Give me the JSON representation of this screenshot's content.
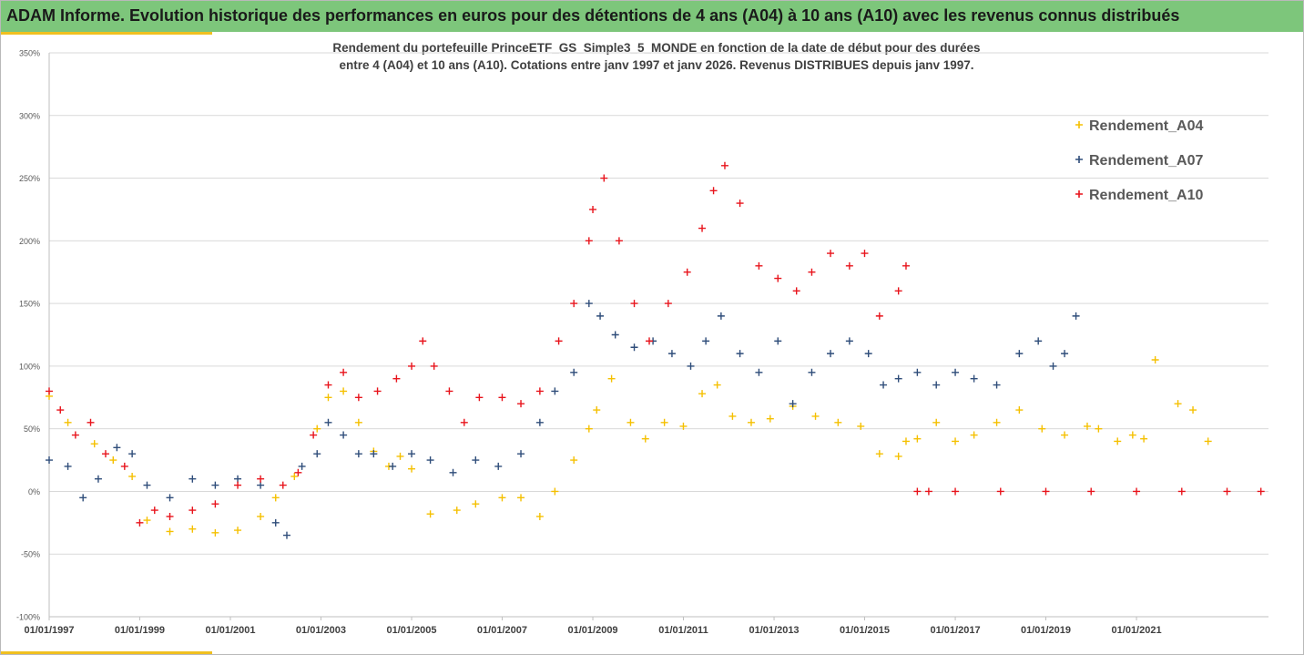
{
  "header": {
    "title": "ADAM Informe. Evolution historique des performances en euros pour des détentions de 4 ans (A04) à 10 ans (A10) avec les revenus connus distribués"
  },
  "colors": {
    "header_bg": "#7dc67b",
    "accent": "#f0c020",
    "A04": "#f5c000",
    "A07": "#2f4d7a",
    "A10": "#e8141c"
  },
  "chart_data": {
    "type": "scatter",
    "marker": "plus",
    "title_line1": "Rendement du portefeuille PrinceETF_GS_Simple3_5_MONDE  en fonction de la date de début pour des durées",
    "title_line2": "entre 4 (A04) et 10 ans (A10). Cotations entre janv 1997 et janv 2026. Revenus DISTRIBUES depuis janv 1997.",
    "xlabel": "",
    "ylabel": "",
    "x_axis_type": "date",
    "xlim": [
      "1997-01-01",
      "2023-12-01"
    ],
    "ylim": [
      -100,
      350
    ],
    "y_ticks": [
      -100,
      -50,
      0,
      50,
      100,
      150,
      200,
      250,
      300,
      350
    ],
    "y_tick_labels": [
      "-100%",
      "-50%",
      "0%",
      "50%",
      "100%",
      "150%",
      "200%",
      "250%",
      "300%",
      "350%"
    ],
    "x_ticks": [
      "1997-01-01",
      "1999-01-01",
      "2001-01-01",
      "2003-01-01",
      "2005-01-01",
      "2007-01-01",
      "2009-01-01",
      "2011-01-01",
      "2013-01-01",
      "2015-01-01",
      "2017-01-01",
      "2019-01-01",
      "2021-01-01"
    ],
    "x_tick_labels": [
      "01/01/1997",
      "01/01/1999",
      "01/01/2001",
      "01/01/2003",
      "01/01/2005",
      "01/01/2007",
      "01/01/2009",
      "01/01/2011",
      "01/01/2013",
      "01/01/2015",
      "01/01/2017",
      "01/01/2019",
      "01/01/2021"
    ],
    "grid": "horizontal",
    "legend_position": "right",
    "series": [
      {
        "name": "Rendement_A04",
        "x": [
          "1997-01-01",
          "1997-06-01",
          "1998-01-01",
          "1998-06-01",
          "1998-11-01",
          "1999-03-01",
          "1999-09-01",
          "2000-03-01",
          "2000-09-01",
          "2001-03-01",
          "2001-09-01",
          "2002-01-01",
          "2002-06-01",
          "2002-12-01",
          "2003-03-01",
          "2003-07-01",
          "2003-11-01",
          "2004-03-01",
          "2004-07-01",
          "2004-10-01",
          "2005-01-01",
          "2005-06-01",
          "2006-01-01",
          "2006-06-01",
          "2007-01-01",
          "2007-06-01",
          "2007-11-01",
          "2008-03-01",
          "2008-08-01",
          "2008-12-01",
          "2009-02-01",
          "2009-06-01",
          "2009-11-01",
          "2010-03-01",
          "2010-08-01",
          "2011-01-01",
          "2011-06-01",
          "2011-10-01",
          "2012-02-01",
          "2012-07-01",
          "2012-12-01",
          "2013-06-01",
          "2013-12-01",
          "2014-06-01",
          "2014-12-01",
          "2015-05-01",
          "2015-10-01",
          "2015-12-01",
          "2016-03-01",
          "2016-08-01",
          "2017-01-01",
          "2017-06-01",
          "2017-12-01",
          "2018-06-01",
          "2018-12-01",
          "2019-06-01",
          "2019-12-01",
          "2020-03-01",
          "2020-08-01",
          "2020-12-01",
          "2021-03-01",
          "2021-06-01",
          "2021-12-01",
          "2022-04-01",
          "2022-08-01"
        ],
        "values": [
          76,
          55,
          38,
          25,
          12,
          -23,
          -32,
          -30,
          -33,
          -31,
          -20,
          -5,
          12,
          50,
          75,
          80,
          55,
          32,
          20,
          28,
          18,
          -18,
          -15,
          -10,
          -5,
          -5,
          -20,
          0,
          25,
          50,
          65,
          90,
          55,
          42,
          55,
          52,
          78,
          85,
          60,
          55,
          58,
          68,
          60,
          55,
          52,
          30,
          28,
          40,
          42,
          55,
          40,
          45,
          55,
          65,
          50,
          45,
          52,
          50,
          40,
          45,
          42,
          105,
          70,
          65,
          40
        ]
      },
      {
        "name": "Rendement_A07",
        "x": [
          "1997-01-01",
          "1997-06-01",
          "1997-10-01",
          "1998-02-01",
          "1998-07-01",
          "1998-11-01",
          "1999-03-01",
          "1999-09-01",
          "2000-03-01",
          "2000-09-01",
          "2001-03-01",
          "2001-09-01",
          "2002-01-01",
          "2002-04-01",
          "2002-08-01",
          "2002-12-01",
          "2003-03-01",
          "2003-07-01",
          "2003-11-01",
          "2004-03-01",
          "2004-08-01",
          "2005-01-01",
          "2005-06-01",
          "2005-12-01",
          "2006-06-01",
          "2006-12-01",
          "2007-06-01",
          "2007-11-01",
          "2008-03-01",
          "2008-08-01",
          "2008-12-01",
          "2009-03-01",
          "2009-07-01",
          "2009-12-01",
          "2010-05-01",
          "2010-10-01",
          "2011-03-01",
          "2011-07-01",
          "2011-11-01",
          "2012-04-01",
          "2012-09-01",
          "2013-02-01",
          "2013-06-01",
          "2013-11-01",
          "2014-04-01",
          "2014-09-01",
          "2015-02-01",
          "2015-06-01",
          "2015-10-01",
          "2016-03-01",
          "2016-08-01",
          "2017-01-01",
          "2017-06-01",
          "2017-12-01",
          "2018-06-01",
          "2018-11-01",
          "2019-03-01",
          "2019-06-01",
          "2019-09-01"
        ],
        "values": [
          25,
          20,
          -5,
          10,
          35,
          30,
          5,
          -5,
          10,
          5,
          10,
          5,
          -25,
          -35,
          20,
          30,
          55,
          45,
          30,
          30,
          20,
          30,
          25,
          15,
          25,
          20,
          30,
          55,
          80,
          95,
          150,
          140,
          125,
          115,
          120,
          110,
          100,
          120,
          140,
          110,
          95,
          120,
          70,
          95,
          110,
          120,
          110,
          85,
          90,
          95,
          85,
          95,
          90,
          85,
          110,
          120,
          100,
          110,
          140
        ]
      },
      {
        "name": "Rendement_A10",
        "x": [
          "1997-01-01",
          "1997-04-01",
          "1997-08-01",
          "1997-12-01",
          "1998-04-01",
          "1998-09-01",
          "1999-01-01",
          "1999-05-01",
          "1999-09-01",
          "2000-03-01",
          "2000-09-01",
          "2001-03-01",
          "2001-09-01",
          "2002-03-01",
          "2002-07-01",
          "2002-11-01",
          "2003-03-01",
          "2003-07-01",
          "2003-11-01",
          "2004-04-01",
          "2004-09-01",
          "2005-01-01",
          "2005-04-01",
          "2005-07-01",
          "2005-11-01",
          "2006-03-01",
          "2006-07-01",
          "2007-01-01",
          "2007-06-01",
          "2007-11-01",
          "2008-04-01",
          "2008-08-01",
          "2008-12-01",
          "2009-01-01",
          "2009-04-01",
          "2009-08-01",
          "2009-12-01",
          "2010-04-01",
          "2010-09-01",
          "2011-02-01",
          "2011-06-01",
          "2011-09-01",
          "2011-12-01",
          "2012-04-01",
          "2012-09-01",
          "2013-02-01",
          "2013-07-01",
          "2013-11-01",
          "2014-04-01",
          "2014-09-01",
          "2015-01-01",
          "2015-05-01",
          "2015-10-01",
          "2015-12-01",
          "2016-03-01",
          "2016-06-01",
          "2017-01-01",
          "2018-01-01",
          "2019-01-01",
          "2020-01-01",
          "2021-01-01",
          "2022-01-01",
          "2023-01-01",
          "2023-10-01"
        ],
        "values": [
          80,
          65,
          45,
          55,
          30,
          20,
          -25,
          -15,
          -20,
          -15,
          -10,
          5,
          10,
          5,
          15,
          45,
          85,
          95,
          75,
          80,
          90,
          100,
          120,
          100,
          80,
          55,
          75,
          75,
          70,
          80,
          120,
          150,
          200,
          225,
          250,
          200,
          150,
          120,
          150,
          175,
          210,
          240,
          260,
          230,
          180,
          170,
          160,
          175,
          190,
          180,
          190,
          140,
          160,
          180,
          0,
          0,
          0,
          0,
          0,
          0,
          0,
          0,
          0,
          0
        ]
      }
    ]
  }
}
